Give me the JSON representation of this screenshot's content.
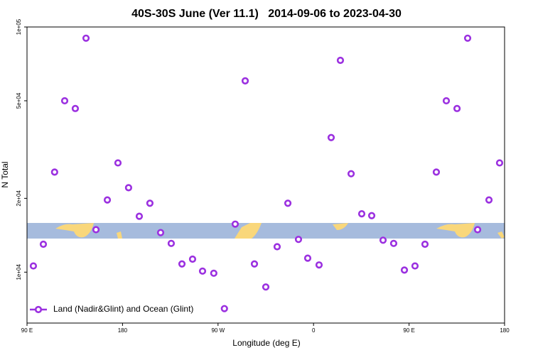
{
  "chart_data": {
    "type": "scatter",
    "title": "40S-30S June (Ver 11.1)   2014-09-06 to 2023-04-30",
    "xlabel": "Longitude (deg E)",
    "ylabel": "N Total",
    "series": [
      {
        "name": "Land (Nadir&Glint) and Ocean (Glint)",
        "color": "#9b30e0",
        "x": [
          96,
          105.4,
          116,
          125.5,
          135.5,
          145.6,
          155,
          165.7,
          175.7,
          185.7,
          195.8,
          205.8,
          215.9,
          225.9,
          236,
          246,
          255.4,
          266,
          276,
          286.2,
          295.6,
          304.3,
          315,
          325.7,
          335.8,
          345.8,
          354.5,
          365.2,
          376.6,
          385.3,
          395.4,
          405.4,
          414.8,
          425.5,
          435.5,
          445.6,
          455.6,
          465,
          475.7,
          485.1,
          495.2,
          505.2,
          514.6,
          525.3,
          535.3
        ],
        "values": [
          10600,
          13000,
          25600,
          50000,
          46500,
          90000,
          14900,
          19700,
          27900,
          22100,
          16900,
          19100,
          14500,
          13100,
          10800,
          11300,
          10100,
          9900,
          7100,
          15700,
          60300,
          10800,
          8700,
          12700,
          19100,
          13600,
          11400,
          10700,
          35400,
          73100,
          25200,
          17300,
          17000,
          13500,
          13100,
          10200,
          10600,
          13000,
          25600,
          50000,
          46500,
          90000,
          14900,
          19700,
          27900
        ]
      }
    ],
    "xlim": [
      90,
      540
    ],
    "xticks": [
      {
        "value": 90,
        "label": "90 E"
      },
      180,
      {
        "value": 270,
        "label": "90 W"
      },
      {
        "value": 360,
        "label": "0"
      },
      {
        "value": 450,
        "label": "90 E"
      },
      {
        "value": 540,
        "label": "180"
      }
    ],
    "ylim": [
      6200,
      100000
    ],
    "log_y": true,
    "yticks": [
      {
        "value": 10000,
        "label": "1e+04"
      },
      {
        "value": 20000,
        "label": "2e+04"
      },
      {
        "value": 50000,
        "label": "5e+04"
      },
      {
        "value": 100000,
        "label": "1e+05"
      }
    ],
    "legend": "lower left"
  }
}
